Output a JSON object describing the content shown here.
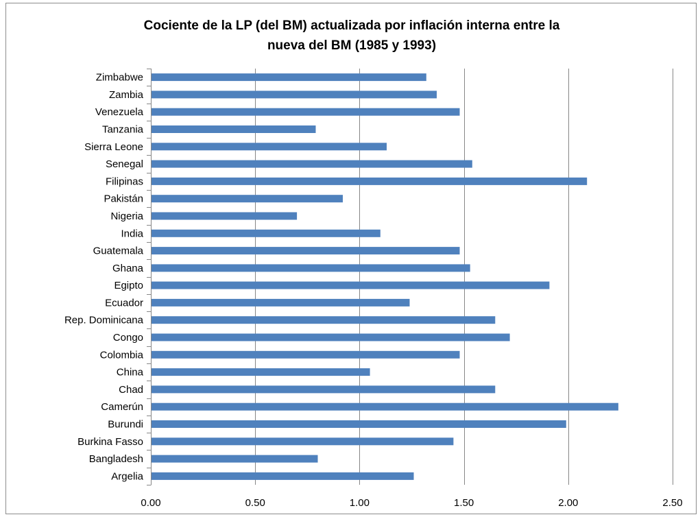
{
  "chart_data": {
    "type": "bar",
    "orientation": "horizontal",
    "title_lines": [
      "Cociente de la LP (del BM) actualizada  por inflación  interna  entre  la",
      "nueva  del BM   (1985 y 1993)"
    ],
    "categories": [
      "Argelia",
      "Bangladesh",
      "Burkina Fasso",
      "Burundi",
      "Camerún",
      "Chad",
      "China",
      "Colombia",
      "Congo",
      "Rep. Dominicana",
      "Ecuador",
      "Egipto",
      "Ghana",
      "Guatemala",
      "India",
      "Nigeria",
      "Pakistán",
      "Filipinas",
      "Senegal",
      "Sierra Leone",
      "Tanzania",
      "Venezuela",
      "Zambia",
      "Zimbabwe"
    ],
    "values": [
      1.26,
      0.8,
      1.45,
      1.99,
      2.24,
      1.65,
      1.05,
      1.48,
      1.72,
      1.65,
      1.24,
      1.91,
      1.53,
      1.48,
      1.1,
      0.7,
      0.92,
      2.09,
      1.54,
      1.13,
      0.79,
      1.48,
      1.37,
      1.32
    ],
    "xlim": [
      0,
      2.5
    ],
    "xticks": [
      "0.00",
      "0.50",
      "1.00",
      "1.50",
      "2.00",
      "2.50"
    ],
    "xtick_values": [
      0,
      0.5,
      1.0,
      1.5,
      2.0,
      2.5
    ],
    "grid": "vertical",
    "legend": "none",
    "bar_color": "#4f81bd",
    "grid_color": "#868686"
  }
}
